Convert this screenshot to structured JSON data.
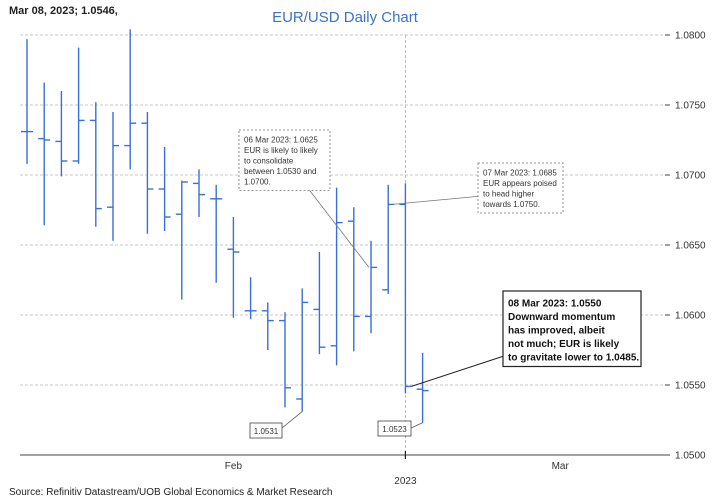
{
  "chart_data": {
    "type": "ohlc",
    "title": "EUR/USD Daily Chart",
    "header": "Mar 08, 2023; 1.0546,",
    "source": "Source: Refinitiv Datastream/UOB Global Economics & Market Research",
    "ylim": [
      1.05,
      1.08
    ],
    "yticks": [
      "1.0500",
      "1.0550",
      "1.0600",
      "1.0650",
      "1.0700",
      "1.0750",
      "1.0800"
    ],
    "xlabels": [
      {
        "label": "Feb",
        "index": 12
      },
      {
        "label": "Mar",
        "index": 31
      }
    ],
    "year_label": {
      "label": "2023",
      "index": 22
    },
    "year_divider_index": 22,
    "bars": [
      {
        "o": 1.0731,
        "h": 1.0797,
        "l": 1.0708,
        "c": 1.0731
      },
      {
        "o": 1.0726,
        "h": 1.0766,
        "l": 1.0664,
        "c": 1.0725
      },
      {
        "o": 1.0724,
        "h": 1.076,
        "l": 1.0699,
        "c": 1.071
      },
      {
        "o": 1.071,
        "h": 1.0791,
        "l": 1.0708,
        "c": 1.0739
      },
      {
        "o": 1.0739,
        "h": 1.0752,
        "l": 1.0663,
        "c": 1.0676
      },
      {
        "o": 1.0677,
        "h": 1.0745,
        "l": 1.0653,
        "c": 1.0721
      },
      {
        "o": 1.0721,
        "h": 1.0804,
        "l": 1.0704,
        "c": 1.0737
      },
      {
        "o": 1.0737,
        "h": 1.0745,
        "l": 1.0658,
        "c": 1.069
      },
      {
        "o": 1.069,
        "h": 1.072,
        "l": 1.066,
        "c": 1.067
      },
      {
        "o": 1.0672,
        "h": 1.0696,
        "l": 1.0611,
        "c": 1.0695
      },
      {
        "o": 1.0694,
        "h": 1.0704,
        "l": 1.067,
        "c": 1.0686
      },
      {
        "o": 1.0683,
        "h": 1.0693,
        "l": 1.0623,
        "c": 1.0683
      },
      {
        "o": 1.0647,
        "h": 1.067,
        "l": 1.0598,
        "c": 1.0645
      },
      {
        "o": 1.0603,
        "h": 1.0627,
        "l": 1.0597,
        "c": 1.0603
      },
      {
        "o": 1.0603,
        "h": 1.0609,
        "l": 1.0575,
        "c": 1.0596
      },
      {
        "o": 1.0596,
        "h": 1.0602,
        "l": 1.0534,
        "c": 1.0548
      },
      {
        "o": 1.054,
        "h": 1.0619,
        "l": 1.0531,
        "c": 1.0609
      },
      {
        "o": 1.0604,
        "h": 1.0645,
        "l": 1.0572,
        "c": 1.0577
      },
      {
        "o": 1.0578,
        "h": 1.0691,
        "l": 1.0564,
        "c": 1.0666
      },
      {
        "o": 1.0667,
        "h": 1.0677,
        "l": 1.0574,
        "c": 1.0599
      },
      {
        "o": 1.0599,
        "h": 1.0653,
        "l": 1.0587,
        "c": 1.0634
      },
      {
        "o": 1.0618,
        "h": 1.0693,
        "l": 1.0615,
        "c": 1.0679
      },
      {
        "o": 1.0679,
        "h": 1.0694,
        "l": 1.0544,
        "c": 1.0549
      },
      {
        "o": 1.0547,
        "h": 1.0573,
        "l": 1.0523,
        "c": 1.0546
      }
    ],
    "annotations": [
      {
        "lines": [
          "06 Mar 2023: 1.0625",
          "EUR is likely to likely",
          "to consolidate",
          "between 1.0530 and",
          "1.0700."
        ],
        "bold": false
      },
      {
        "lines": [
          "07 Mar 2023: 1.0685",
          "EUR appears poised",
          "to head higher",
          "towards 1.0750."
        ],
        "bold": false
      },
      {
        "lines": [
          "08 Mar 2023: 1.0550",
          "Downward momentum",
          "has improved, albeit",
          "not much; EUR is likely",
          "to gravitate lower to 1.0485."
        ],
        "bold": true
      }
    ],
    "price_labels": [
      {
        "text": "1.0531",
        "bar": 16
      },
      {
        "text": "1.0523",
        "bar": 23
      }
    ]
  }
}
